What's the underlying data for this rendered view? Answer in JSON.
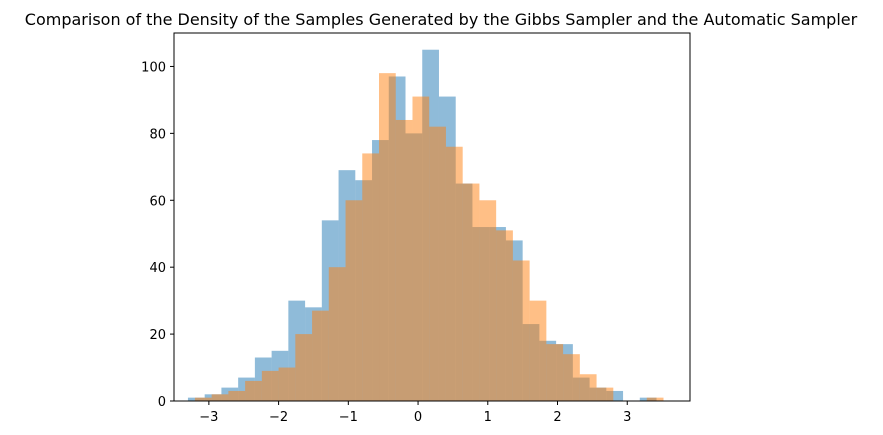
{
  "chart_data": {
    "type": "bar",
    "title": "Comparison of the Density of the Samples Generated by the Gibbs Sampler and the Automatic Sampler",
    "xlabel": "",
    "ylabel": "",
    "xlim": [
      -3.5,
      3.9
    ],
    "ylim": [
      0,
      110
    ],
    "xticks": [
      -3,
      -2,
      -1,
      0,
      1,
      2,
      3
    ],
    "yticks": [
      0,
      20,
      40,
      60,
      80,
      100
    ],
    "xtick_labels": [
      "−3",
      "−2",
      "−1",
      "0",
      "1",
      "2",
      "3"
    ],
    "ytick_labels": [
      "0",
      "20",
      "40",
      "60",
      "80",
      "100"
    ],
    "grid": false,
    "series": [
      {
        "color": "#1f77b4",
        "alpha": 0.5,
        "bin_edges": [
          -3.3,
          -3.06,
          -2.82,
          -2.58,
          -2.34,
          -2.1,
          -1.86,
          -1.62,
          -1.38,
          -1.14,
          -0.9,
          -0.66,
          -0.42,
          -0.18,
          0.06,
          0.3,
          0.54,
          0.78,
          1.02,
          1.26,
          1.5,
          1.74,
          1.98,
          2.22,
          2.46,
          2.7,
          2.94,
          3.18,
          3.42
        ],
        "counts": [
          1,
          2,
          4,
          7,
          13,
          15,
          30,
          28,
          54,
          69,
          66,
          78,
          97,
          80,
          105,
          91,
          65,
          52,
          52,
          48,
          23,
          18,
          17,
          7,
          4,
          3,
          0,
          1
        ]
      },
      {
        "color": "#ff7f0e",
        "alpha": 0.5,
        "bin_edges": [
          -3.2,
          -2.96,
          -2.72,
          -2.48,
          -2.24,
          -2.0,
          -1.76,
          -1.52,
          -1.28,
          -1.04,
          -0.8,
          -0.56,
          -0.32,
          -0.08,
          0.16,
          0.4,
          0.64,
          0.88,
          1.12,
          1.36,
          1.6,
          1.84,
          2.08,
          2.32,
          2.56,
          2.8,
          3.04,
          3.28,
          3.52
        ],
        "counts": [
          1,
          2,
          3,
          6,
          9,
          10,
          20,
          27,
          40,
          60,
          74,
          98,
          84,
          91,
          82,
          76,
          65,
          60,
          51,
          42,
          30,
          17,
          14,
          8,
          4,
          0,
          0,
          1
        ]
      }
    ]
  }
}
